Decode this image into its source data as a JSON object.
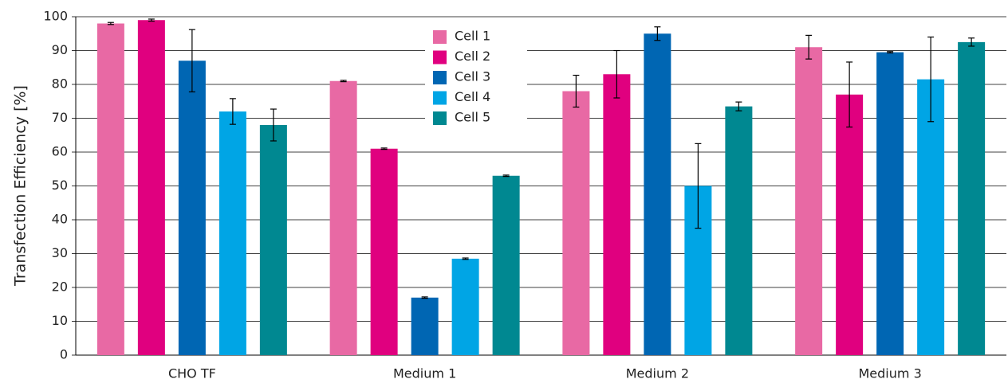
{
  "chart_data": {
    "type": "bar",
    "y_label": "Transfection Efficiency [%]",
    "categories": [
      "CHO TF",
      "Medium 1",
      "Medium 2",
      "Medium 3"
    ],
    "series": [
      {
        "name": "Cell 1",
        "color": "#e869a4",
        "values": [
          98,
          81,
          78,
          91
        ],
        "errors": [
          0.3,
          0.2,
          4.7,
          3.5
        ]
      },
      {
        "name": "Cell 2",
        "color": "#e0007f",
        "values": [
          99,
          61,
          83,
          77
        ],
        "errors": [
          0.3,
          0.2,
          7,
          9.6
        ]
      },
      {
        "name": "Cell 3",
        "color": "#0066b3",
        "values": [
          87,
          17,
          95,
          89.5
        ],
        "errors": [
          9.2,
          0.2,
          2,
          0.2
        ]
      },
      {
        "name": "Cell 4",
        "color": "#00a5e5",
        "values": [
          72,
          28.5,
          50,
          81.5
        ],
        "errors": [
          3.8,
          0.2,
          12.5,
          12.5
        ]
      },
      {
        "name": "Cell 5",
        "color": "#008891",
        "values": [
          68,
          53,
          73.5,
          92.5
        ],
        "errors": [
          4.7,
          0.2,
          1.3,
          1.2
        ]
      }
    ],
    "ylim": [
      0,
      100
    ],
    "yticks": [
      0,
      10,
      20,
      30,
      40,
      50,
      60,
      70,
      80,
      90,
      100
    ],
    "grid": true,
    "legend": "upper-center"
  }
}
